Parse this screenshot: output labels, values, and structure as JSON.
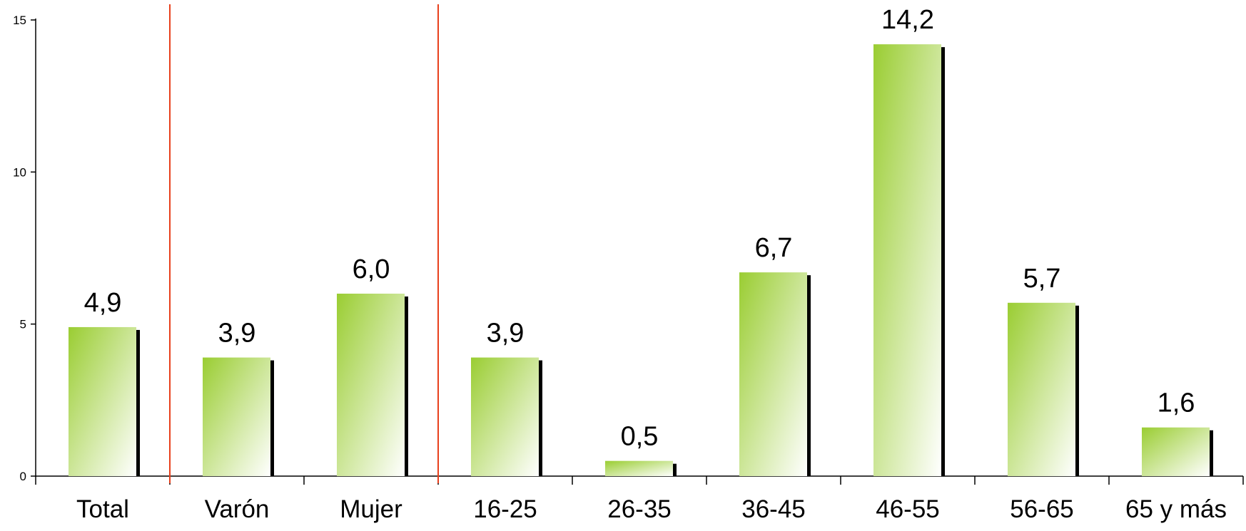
{
  "chart_data": {
    "type": "bar",
    "categories": [
      "Total",
      "Varón",
      "Mujer",
      "16-25",
      "26-35",
      "36-45",
      "46-55",
      "56-65",
      "65 y más"
    ],
    "values": [
      4.9,
      3.9,
      6.0,
      3.9,
      0.5,
      6.7,
      14.2,
      5.7,
      1.6
    ],
    "value_labels": [
      "4,9",
      "3,9",
      "6,0",
      "3,9",
      "0,5",
      "6,7",
      "14,2",
      "5,7",
      "1,6"
    ],
    "yticks": [
      0,
      5,
      10,
      15
    ],
    "ytick_labels": [
      "0",
      "5",
      "10",
      "15"
    ],
    "ylim": [
      0,
      15
    ],
    "group_separators_after": [
      0,
      2
    ],
    "colors": {
      "bar_top": "#9acd32",
      "bar_bottom": "#ffffff",
      "bar_shadow": "#000000",
      "separator": "#e8401c",
      "axis": "#000000"
    },
    "grid": false,
    "legend": false
  }
}
